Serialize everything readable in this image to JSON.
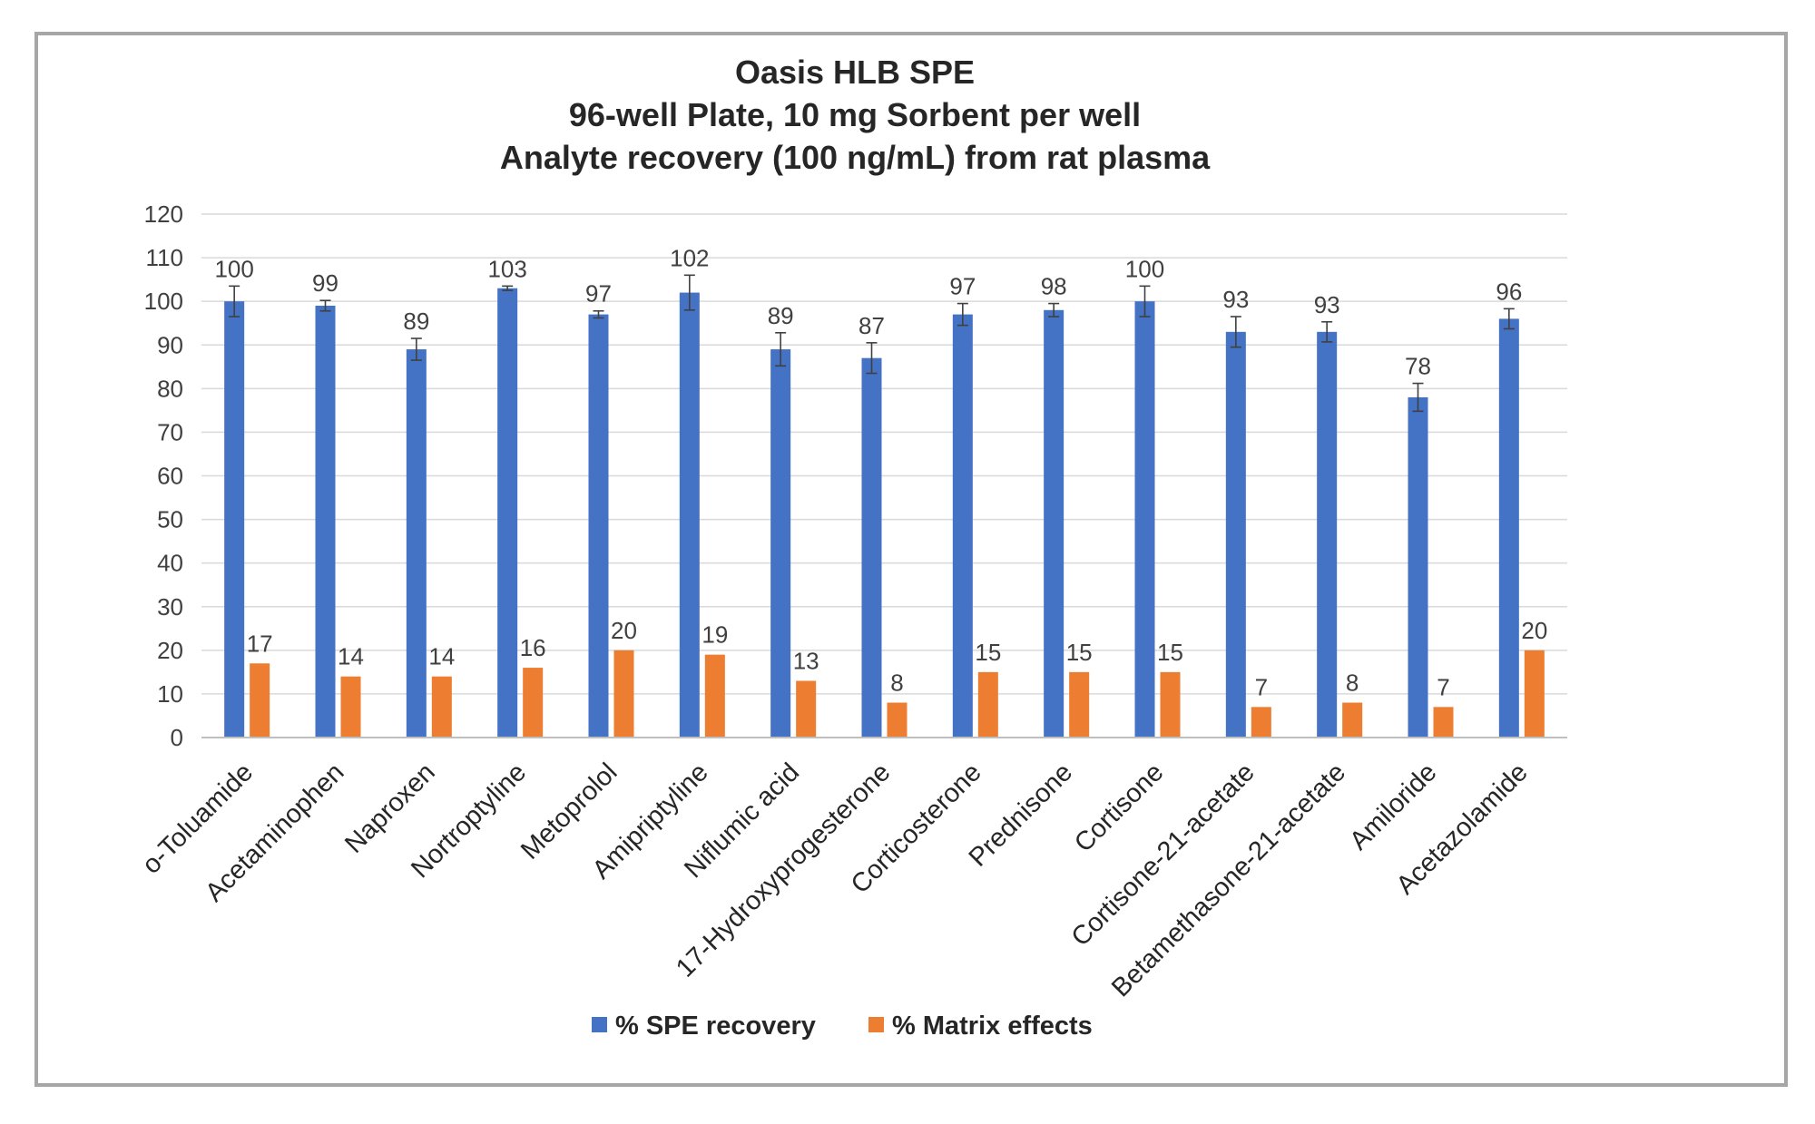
{
  "chart_data": {
    "type": "bar",
    "title_lines": [
      "Oasis HLB SPE",
      "96-well Plate, 10 mg Sorbent per well",
      "Analyte recovery (100 ng/mL) from rat plasma"
    ],
    "categories": [
      "o-Toluamide",
      "Acetaminophen",
      "Naproxen",
      "Nortroptyline",
      "Metoprolol",
      "Amipriptyline",
      "Niflumic acid",
      "17-Hydroxyprogesterone",
      "Corticosterone",
      "Prednisone",
      "Cortisone",
      "Cortisone-21-acetate",
      "Betamethasone-21-acetate",
      "Amiloride",
      "Acetazolamide"
    ],
    "series": [
      {
        "name": "% SPE recovery",
        "color": "#4472c4",
        "values": [
          100,
          99,
          89,
          103,
          97,
          102,
          89,
          87,
          97,
          98,
          100,
          93,
          93,
          78,
          96
        ],
        "labels": [
          "100",
          "99",
          "89",
          "103",
          "97",
          "102",
          "89",
          "87",
          "97",
          "98",
          "100",
          "93",
          "93",
          "78",
          "96"
        ],
        "error": [
          3.5,
          1.2,
          2.5,
          0.5,
          0.8,
          4.0,
          3.8,
          3.5,
          2.5,
          1.5,
          3.5,
          3.5,
          2.3,
          3.2,
          2.3
        ]
      },
      {
        "name": "% Matrix effects",
        "color": "#ed7d31",
        "values": [
          17,
          14,
          14,
          16,
          20,
          19,
          13,
          8,
          15,
          15,
          15,
          7,
          8,
          7,
          20
        ],
        "labels": [
          "17",
          "14",
          "14",
          "16",
          "20",
          "19",
          "13",
          "8",
          "15",
          "15",
          "15",
          "7",
          "8",
          "7",
          "20"
        ]
      }
    ],
    "y_ticks": [
      "0",
      "10",
      "20",
      "30",
      "40",
      "50",
      "60",
      "70",
      "80",
      "90",
      "100",
      "110",
      "120"
    ],
    "ylim": [
      0,
      120
    ],
    "ystep": 10,
    "grid": true,
    "legend_position": "bottom-center",
    "xlabel": "",
    "ylabel": ""
  }
}
